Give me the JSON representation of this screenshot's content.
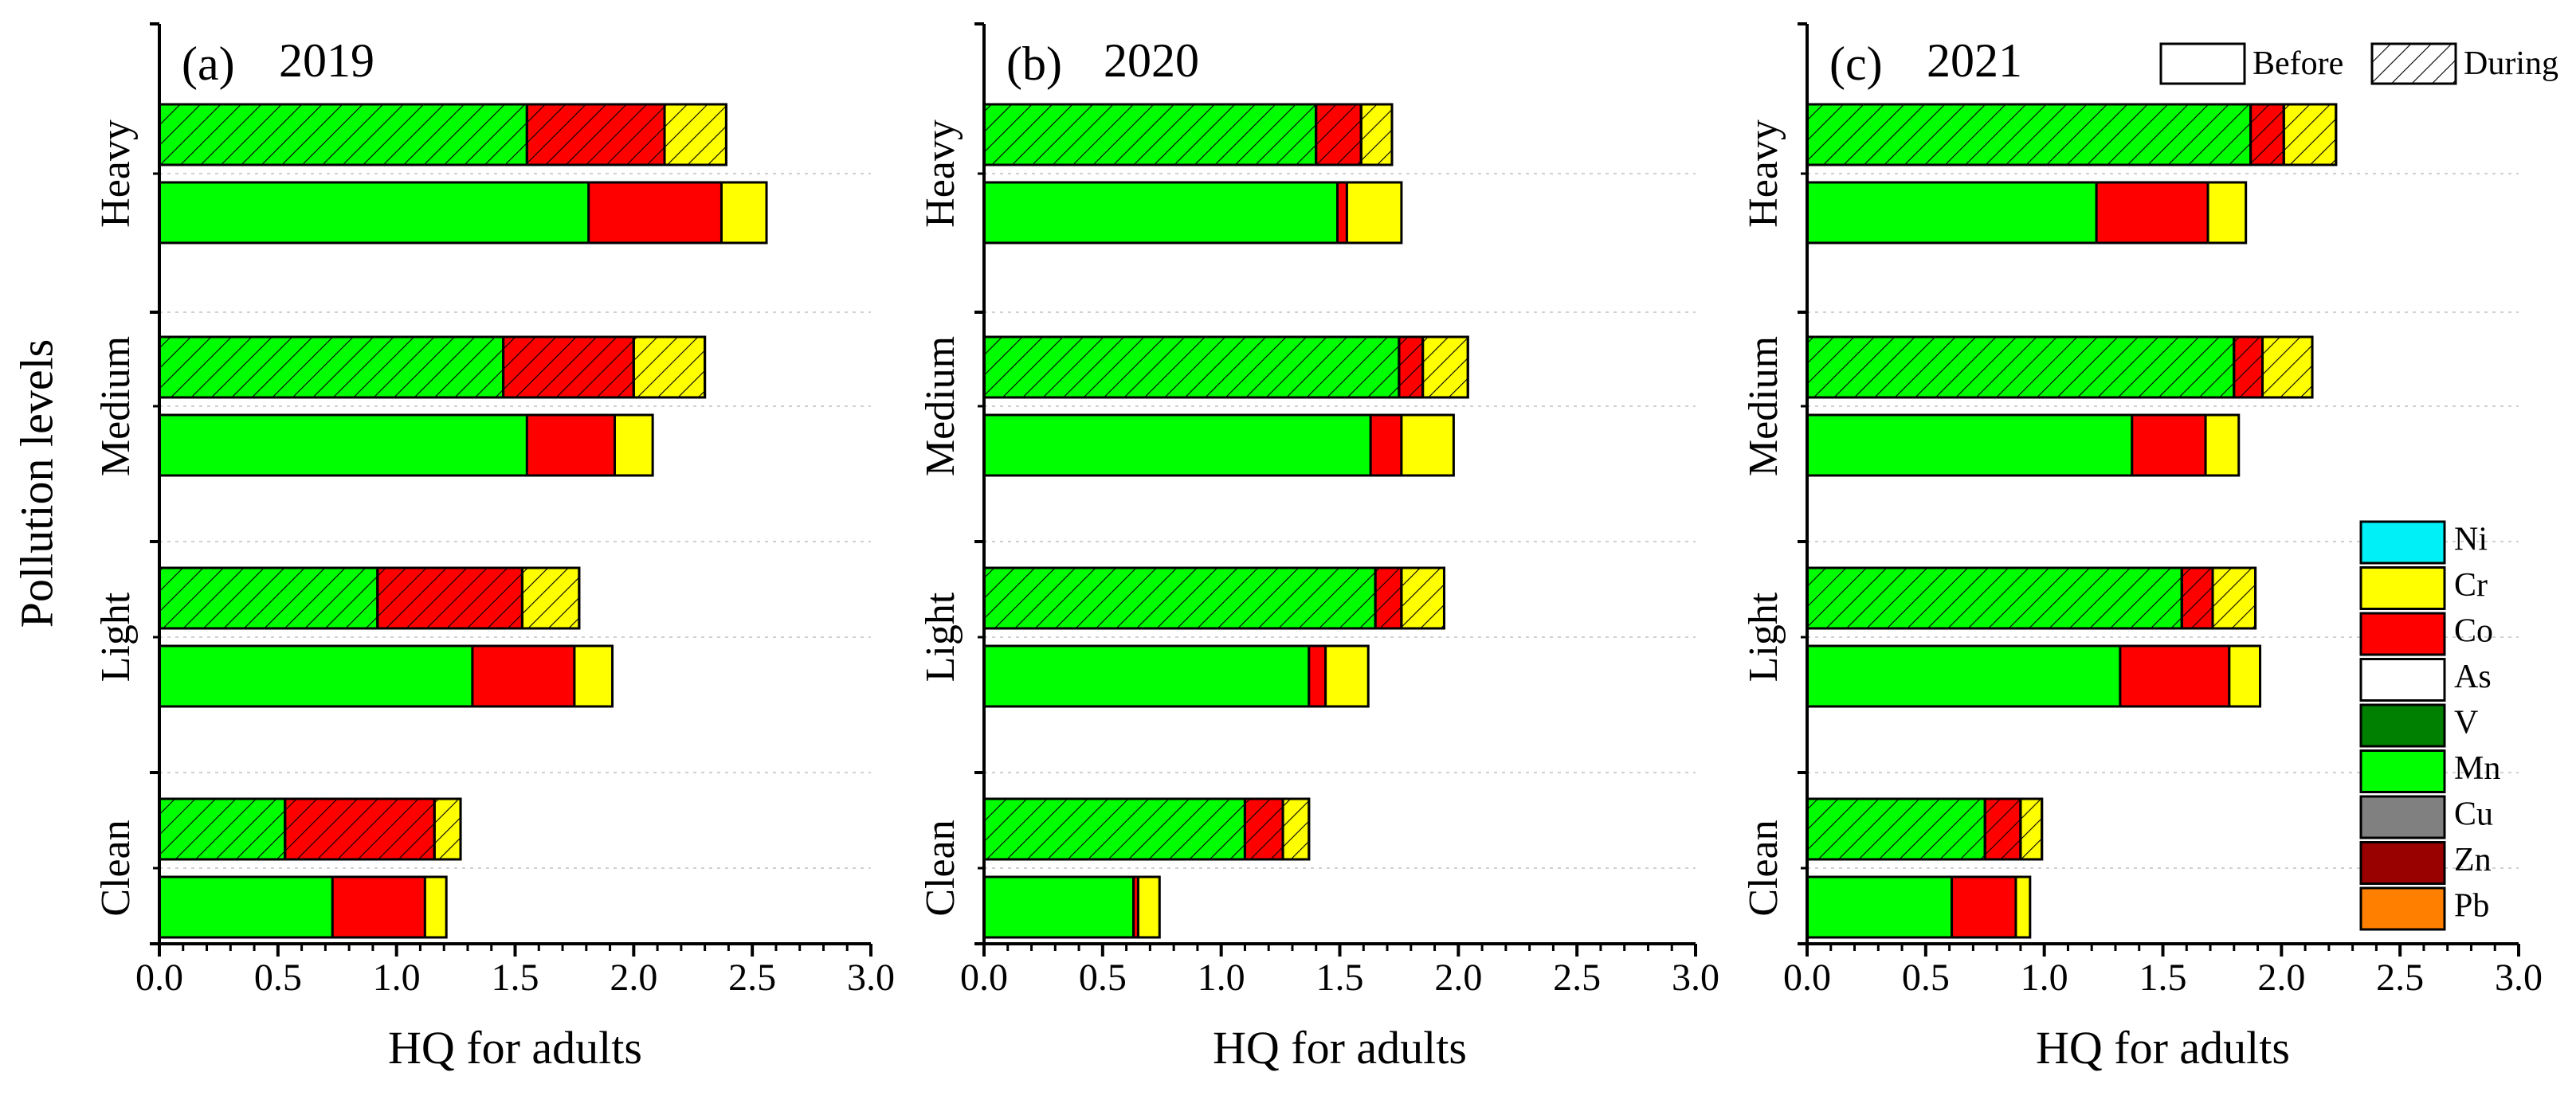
{
  "chart_data": {
    "type": "bar",
    "orientation": "horizontal",
    "stacked": true,
    "ylabel": "Pollution levels",
    "categories": [
      "Heavy",
      "Medium",
      "Light",
      "Clean"
    ],
    "periods": [
      "During",
      "Before"
    ],
    "period_patterns": {
      "Before": "solid",
      "During": "hatched"
    },
    "components": [
      "Ni",
      "Cr",
      "Co",
      "As",
      "V",
      "Mn",
      "Cu",
      "Zn",
      "Pb"
    ],
    "component_colors": {
      "Ni": "#00F0F8",
      "Cr": "#FFFF00",
      "Co": "#FF0000",
      "As": "#FFFFFF",
      "V": "#008000",
      "Mn": "#00FF00",
      "Cu": "#808080",
      "Zn": "#990000",
      "Pb": "#FF8000"
    },
    "stack_order": [
      "Mn",
      "Co",
      "Cr"
    ],
    "legend": {
      "items": [
        "Ni",
        "Cr",
        "Co",
        "As",
        "V",
        "Mn",
        "Cu",
        "Zn",
        "Pb"
      ],
      "period_items": [
        "Before",
        "During"
      ]
    },
    "xlim": [
      0,
      3.0
    ],
    "xticks": [
      "0.0",
      "0.5",
      "1.0",
      "1.5",
      "2.0",
      "2.5",
      "3.0"
    ],
    "xtick_values": [
      0,
      0.5,
      1.0,
      1.5,
      2.0,
      2.5,
      3.0
    ],
    "panels": [
      {
        "label": "(a)",
        "year": "2019",
        "xlabel": "HQ for adults",
        "bars": {
          "Heavy": {
            "During": {
              "Mn": 1.55,
              "Co": 0.58,
              "Cr": 0.26
            },
            "Before": {
              "Mn": 1.81,
              "Co": 0.56,
              "Cr": 0.19
            }
          },
          "Medium": {
            "During": {
              "Mn": 1.45,
              "Co": 0.55,
              "Cr": 0.3
            },
            "Before": {
              "Mn": 1.55,
              "Co": 0.37,
              "Cr": 0.16
            }
          },
          "Light": {
            "During": {
              "Mn": 0.92,
              "Co": 0.61,
              "Cr": 0.24
            },
            "Before": {
              "Mn": 1.32,
              "Co": 0.43,
              "Cr": 0.16
            }
          },
          "Clean": {
            "During": {
              "Mn": 0.53,
              "Co": 0.63,
              "Cr": 0.11
            },
            "Before": {
              "Mn": 0.73,
              "Co": 0.39,
              "Cr": 0.09
            }
          }
        }
      },
      {
        "label": "(b)",
        "year": "2020",
        "xlabel": "HQ for adults",
        "bars": {
          "Heavy": {
            "During": {
              "Mn": 1.4,
              "Co": 0.19,
              "Cr": 0.13
            },
            "Before": {
              "Mn": 1.49,
              "Co": 0.04,
              "Cr": 0.23
            }
          },
          "Medium": {
            "During": {
              "Mn": 1.75,
              "Co": 0.1,
              "Cr": 0.19
            },
            "Before": {
              "Mn": 1.63,
              "Co": 0.13,
              "Cr": 0.22
            }
          },
          "Light": {
            "During": {
              "Mn": 1.65,
              "Co": 0.11,
              "Cr": 0.18
            },
            "Before": {
              "Mn": 1.37,
              "Co": 0.07,
              "Cr": 0.18
            }
          },
          "Clean": {
            "During": {
              "Mn": 1.1,
              "Co": 0.16,
              "Cr": 0.11
            },
            "Before": {
              "Mn": 0.63,
              "Co": 0.02,
              "Cr": 0.09
            }
          }
        }
      },
      {
        "label": "(c)",
        "year": "2021",
        "xlabel": "HQ for adults",
        "bars": {
          "Heavy": {
            "During": {
              "Mn": 1.87,
              "Co": 0.14,
              "Cr": 0.22
            },
            "Before": {
              "Mn": 1.22,
              "Co": 0.47,
              "Cr": 0.16
            }
          },
          "Medium": {
            "During": {
              "Mn": 1.8,
              "Co": 0.12,
              "Cr": 0.21
            },
            "Before": {
              "Mn": 1.37,
              "Co": 0.31,
              "Cr": 0.14
            }
          },
          "Light": {
            "During": {
              "Mn": 1.58,
              "Co": 0.13,
              "Cr": 0.18
            },
            "Before": {
              "Mn": 1.32,
              "Co": 0.46,
              "Cr": 0.13
            }
          },
          "Clean": {
            "During": {
              "Mn": 0.75,
              "Co": 0.15,
              "Cr": 0.09
            },
            "Before": {
              "Mn": 0.61,
              "Co": 0.27,
              "Cr": 0.06
            }
          }
        }
      }
    ]
  }
}
